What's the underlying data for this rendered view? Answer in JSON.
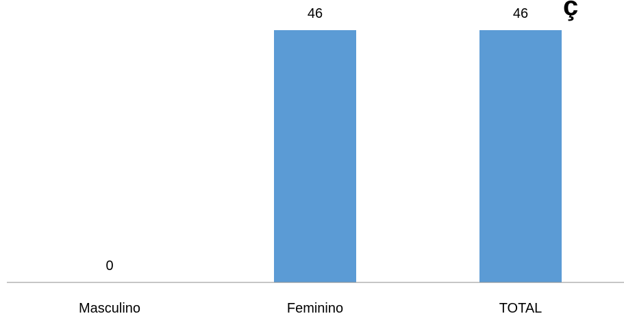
{
  "chart_data": {
    "type": "bar",
    "categories": [
      "Masculino",
      "Feminino",
      "TOTAL"
    ],
    "values": [
      0,
      46,
      46
    ],
    "title": "",
    "xlabel": "",
    "ylabel": "",
    "ylim": [
      0,
      50
    ],
    "grid": false,
    "legend": "none",
    "bar_color": "#5B9BD5",
    "axis_color": "#8C8C8C",
    "text_color": "#000000",
    "corner_glyph": "ç"
  }
}
